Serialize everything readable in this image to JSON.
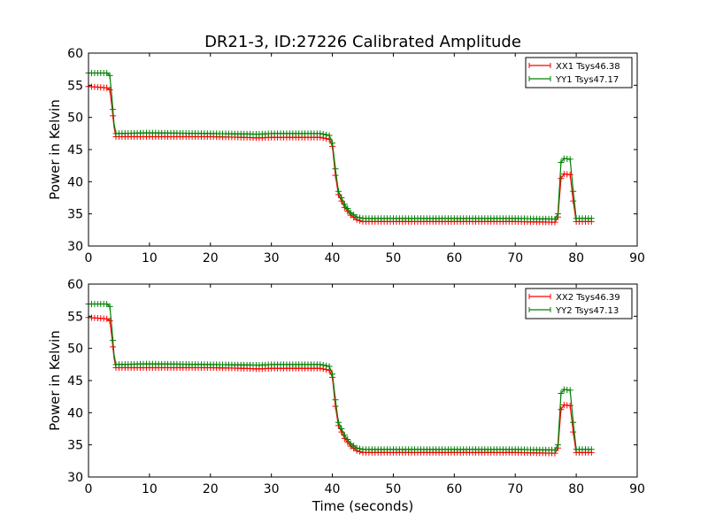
{
  "title": "DR21-3, ID:27226 Calibrated Amplitude",
  "chart_data": [
    {
      "type": "line",
      "title": "DR21-3, ID:27226 Calibrated Amplitude",
      "xlabel": "",
      "ylabel": "Power in Kelvin",
      "xlim": [
        0,
        90
      ],
      "ylim": [
        30,
        60
      ],
      "xticks": [
        0,
        10,
        20,
        30,
        40,
        50,
        60,
        70,
        80,
        90
      ],
      "yticks": [
        30,
        35,
        40,
        45,
        50,
        55,
        60
      ],
      "grid": false,
      "legend_position": "top-right",
      "series": [
        {
          "name": "XX1 Tsys46.38",
          "color": "#ff0000",
          "marker": "plus",
          "points": [
            [
              0,
              54.8
            ],
            [
              3.0,
              54.6
            ],
            [
              3.5,
              54.3
            ],
            [
              3.8,
              52.0
            ],
            [
              4.2,
              48.5
            ],
            [
              4.5,
              47.0
            ],
            [
              10,
              47.0
            ],
            [
              20,
              47.0
            ],
            [
              25,
              46.9
            ],
            [
              28,
              46.8
            ],
            [
              30,
              46.9
            ],
            [
              38,
              46.9
            ],
            [
              39.5,
              46.6
            ],
            [
              40.0,
              45.5
            ],
            [
              40.5,
              41.0
            ],
            [
              41.0,
              38.0
            ],
            [
              41.5,
              37.0
            ],
            [
              42.0,
              36.0
            ],
            [
              43.0,
              34.8
            ],
            [
              44.0,
              34.1
            ],
            [
              45.0,
              33.8
            ],
            [
              50,
              33.8
            ],
            [
              60,
              33.8
            ],
            [
              70,
              33.8
            ],
            [
              76.5,
              33.7
            ],
            [
              77.0,
              34.5
            ],
            [
              77.5,
              40.5
            ],
            [
              78.0,
              41.2
            ],
            [
              79.0,
              41.1
            ],
            [
              79.5,
              37.0
            ],
            [
              80.0,
              33.8
            ],
            [
              82.5,
              33.8
            ]
          ]
        },
        {
          "name": "YY1 Tsys47.17",
          "color": "#008000",
          "marker": "plus",
          "points": [
            [
              0,
              56.9
            ],
            [
              3.0,
              56.9
            ],
            [
              3.5,
              56.5
            ],
            [
              3.8,
              53.5
            ],
            [
              4.2,
              49.0
            ],
            [
              4.5,
              47.5
            ],
            [
              10,
              47.6
            ],
            [
              20,
              47.5
            ],
            [
              28,
              47.4
            ],
            [
              30,
              47.5
            ],
            [
              38,
              47.5
            ],
            [
              39.5,
              47.2
            ],
            [
              40.0,
              46.0
            ],
            [
              40.5,
              42.0
            ],
            [
              41.0,
              38.5
            ],
            [
              41.5,
              37.5
            ],
            [
              42.0,
              36.5
            ],
            [
              43.0,
              35.2
            ],
            [
              44.0,
              34.5
            ],
            [
              45.0,
              34.3
            ],
            [
              50,
              34.3
            ],
            [
              60,
              34.3
            ],
            [
              70,
              34.3
            ],
            [
              76.5,
              34.2
            ],
            [
              77.0,
              35.0
            ],
            [
              77.5,
              43.0
            ],
            [
              78.0,
              43.6
            ],
            [
              79.0,
              43.5
            ],
            [
              79.5,
              38.5
            ],
            [
              80.0,
              34.3
            ],
            [
              82.5,
              34.3
            ]
          ]
        }
      ]
    },
    {
      "type": "line",
      "title": "",
      "xlabel": "Time (seconds)",
      "ylabel": "Power in Kelvin",
      "xlim": [
        0,
        90
      ],
      "ylim": [
        30,
        60
      ],
      "xticks": [
        0,
        10,
        20,
        30,
        40,
        50,
        60,
        70,
        80,
        90
      ],
      "yticks": [
        30,
        35,
        40,
        45,
        50,
        55,
        60
      ],
      "grid": false,
      "legend_position": "top-right",
      "series": [
        {
          "name": "XX2 Tsys46.39",
          "color": "#ff0000",
          "marker": "plus",
          "points": [
            [
              0,
              54.8
            ],
            [
              3.0,
              54.6
            ],
            [
              3.5,
              54.3
            ],
            [
              3.8,
              52.0
            ],
            [
              4.2,
              48.5
            ],
            [
              4.5,
              47.0
            ],
            [
              10,
              47.0
            ],
            [
              20,
              47.0
            ],
            [
              25,
              46.9
            ],
            [
              28,
              46.8
            ],
            [
              30,
              46.9
            ],
            [
              38,
              46.9
            ],
            [
              39.5,
              46.6
            ],
            [
              40.0,
              45.5
            ],
            [
              40.5,
              41.0
            ],
            [
              41.0,
              38.0
            ],
            [
              41.5,
              37.0
            ],
            [
              42.0,
              36.0
            ],
            [
              43.0,
              34.8
            ],
            [
              44.0,
              34.1
            ],
            [
              45.0,
              33.8
            ],
            [
              50,
              33.8
            ],
            [
              60,
              33.8
            ],
            [
              70,
              33.8
            ],
            [
              76.5,
              33.7
            ],
            [
              77.0,
              34.5
            ],
            [
              77.5,
              40.5
            ],
            [
              78.0,
              41.2
            ],
            [
              79.0,
              41.1
            ],
            [
              79.5,
              37.0
            ],
            [
              80.0,
              33.8
            ],
            [
              82.5,
              33.8
            ]
          ]
        },
        {
          "name": "YY2 Tsys47.13",
          "color": "#008000",
          "marker": "plus",
          "points": [
            [
              0,
              56.9
            ],
            [
              3.0,
              56.9
            ],
            [
              3.5,
              56.5
            ],
            [
              3.8,
              53.5
            ],
            [
              4.2,
              49.0
            ],
            [
              4.5,
              47.5
            ],
            [
              10,
              47.6
            ],
            [
              20,
              47.5
            ],
            [
              28,
              47.4
            ],
            [
              30,
              47.5
            ],
            [
              38,
              47.5
            ],
            [
              39.5,
              47.2
            ],
            [
              40.0,
              46.0
            ],
            [
              40.5,
              42.0
            ],
            [
              41.0,
              38.5
            ],
            [
              41.5,
              37.5
            ],
            [
              42.0,
              36.5
            ],
            [
              43.0,
              35.2
            ],
            [
              44.0,
              34.5
            ],
            [
              45.0,
              34.3
            ],
            [
              50,
              34.3
            ],
            [
              60,
              34.3
            ],
            [
              70,
              34.3
            ],
            [
              76.5,
              34.2
            ],
            [
              77.0,
              35.0
            ],
            [
              77.5,
              43.0
            ],
            [
              78.0,
              43.6
            ],
            [
              79.0,
              43.5
            ],
            [
              79.5,
              38.5
            ],
            [
              80.0,
              34.3
            ],
            [
              82.5,
              34.3
            ]
          ]
        }
      ]
    }
  ]
}
